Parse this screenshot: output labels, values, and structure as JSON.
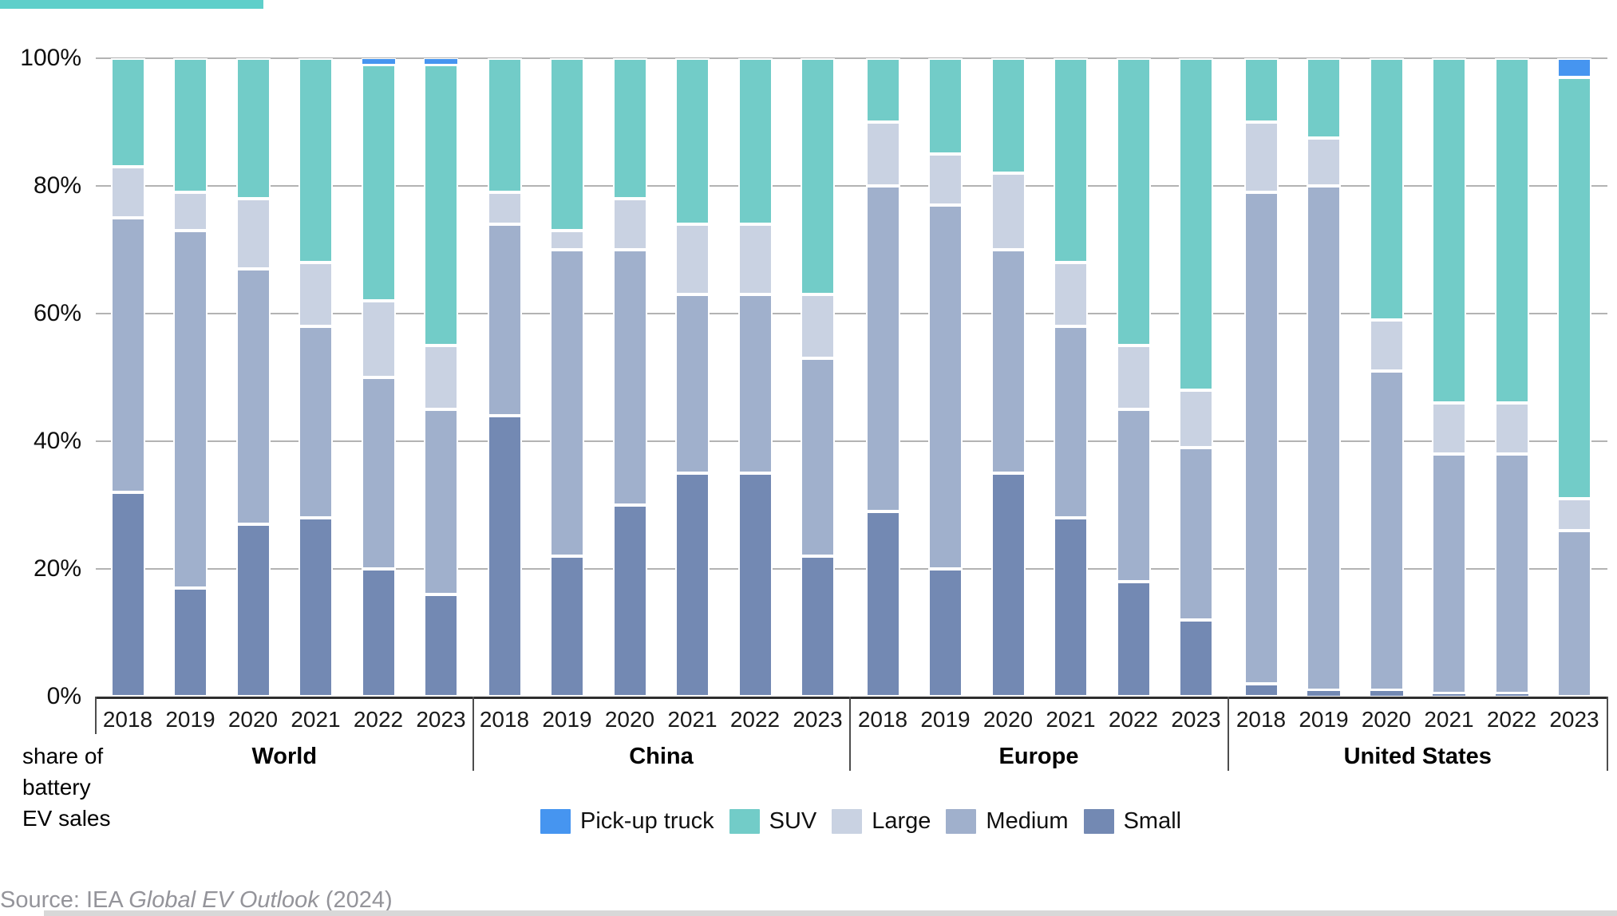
{
  "accent_bar_color": "#5ecfca",
  "y_axis": {
    "tick_labels": [
      "100%",
      "80%",
      "60%",
      "40%",
      "20%",
      "0%"
    ],
    "caption_lines": [
      "share of",
      "battery",
      "EV sales"
    ]
  },
  "legend": {
    "items": [
      {
        "id": "pickup",
        "label": "Pick-up truck",
        "color": "#4695f0"
      },
      {
        "id": "suv",
        "label": "SUV",
        "color": "#72ccc8"
      },
      {
        "id": "large",
        "label": "Large",
        "color": "#c9d2e2"
      },
      {
        "id": "medium",
        "label": "Medium",
        "color": "#a0b0cc"
      },
      {
        "id": "small",
        "label": "Small",
        "color": "#7389b3"
      }
    ]
  },
  "source": {
    "prefix": "Source: IEA ",
    "italic": "Global EV Outlook",
    "suffix": " (2024)"
  },
  "chart_data": {
    "type": "bar",
    "stacked": true,
    "unit": "percent share of battery EV sales",
    "ylim": [
      0,
      100
    ],
    "grid": true,
    "legend_position": "bottom",
    "series_order_bottom_to_top": [
      "Small",
      "Medium",
      "Large",
      "SUV",
      "Pick-up truck"
    ],
    "series_colors": {
      "pickup": "#4695f0",
      "suv": "#72ccc8",
      "large": "#c9d2e2",
      "medium": "#a0b0cc",
      "small": "#7389b3"
    },
    "groups": [
      {
        "label": "World",
        "bars": [
          {
            "year": "2018",
            "small": 32,
            "medium": 43,
            "large": 8,
            "suv": 17,
            "pickup": 0
          },
          {
            "year": "2019",
            "small": 17,
            "medium": 56,
            "large": 6,
            "suv": 21,
            "pickup": 0
          },
          {
            "year": "2020",
            "small": 27,
            "medium": 40,
            "large": 11,
            "suv": 22,
            "pickup": 0
          },
          {
            "year": "2021",
            "small": 28,
            "medium": 30,
            "large": 10,
            "suv": 32,
            "pickup": 0
          },
          {
            "year": "2022",
            "small": 20,
            "medium": 30,
            "large": 12,
            "suv": 37,
            "pickup": 1
          },
          {
            "year": "2023",
            "small": 16,
            "medium": 29,
            "large": 10,
            "suv": 44,
            "pickup": 1
          }
        ]
      },
      {
        "label": "China",
        "bars": [
          {
            "year": "2018",
            "small": 44,
            "medium": 30,
            "large": 5,
            "suv": 21,
            "pickup": 0
          },
          {
            "year": "2019",
            "small": 22,
            "medium": 48,
            "large": 3,
            "suv": 27,
            "pickup": 0
          },
          {
            "year": "2020",
            "small": 30,
            "medium": 40,
            "large": 8,
            "suv": 22,
            "pickup": 0
          },
          {
            "year": "2021",
            "small": 35,
            "medium": 28,
            "large": 11,
            "suv": 26,
            "pickup": 0
          },
          {
            "year": "2022",
            "small": 35,
            "medium": 28,
            "large": 11,
            "suv": 26,
            "pickup": 0
          },
          {
            "year": "2023",
            "small": 22,
            "medium": 31,
            "large": 10,
            "suv": 37,
            "pickup": 0
          }
        ]
      },
      {
        "label": "Europe",
        "bars": [
          {
            "year": "2018",
            "small": 29,
            "medium": 51,
            "large": 10,
            "suv": 10,
            "pickup": 0
          },
          {
            "year": "2019",
            "small": 20,
            "medium": 57,
            "large": 8,
            "suv": 15,
            "pickup": 0
          },
          {
            "year": "2020",
            "small": 35,
            "medium": 35,
            "large": 12,
            "suv": 18,
            "pickup": 0
          },
          {
            "year": "2021",
            "small": 28,
            "medium": 30,
            "large": 10,
            "suv": 32,
            "pickup": 0
          },
          {
            "year": "2022",
            "small": 18,
            "medium": 27,
            "large": 10,
            "suv": 45,
            "pickup": 0
          },
          {
            "year": "2023",
            "small": 12,
            "medium": 27,
            "large": 9,
            "suv": 52,
            "pickup": 0
          }
        ]
      },
      {
        "label": "United States",
        "bars": [
          {
            "year": "2018",
            "small": 2,
            "medium": 77,
            "large": 11,
            "suv": 10,
            "pickup": 0
          },
          {
            "year": "2019",
            "small": 1,
            "medium": 79,
            "large": 7.5,
            "suv": 12.5,
            "pickup": 0
          },
          {
            "year": "2020",
            "small": 1,
            "medium": 50,
            "large": 8,
            "suv": 41,
            "pickup": 0
          },
          {
            "year": "2021",
            "small": 0.5,
            "medium": 37.5,
            "large": 8,
            "suv": 54,
            "pickup": 0
          },
          {
            "year": "2022",
            "small": 0.5,
            "medium": 37.5,
            "large": 8,
            "suv": 54,
            "pickup": 0
          },
          {
            "year": "2023",
            "small": 0,
            "medium": 26,
            "large": 5,
            "suv": 66,
            "pickup": 3
          }
        ]
      }
    ]
  }
}
